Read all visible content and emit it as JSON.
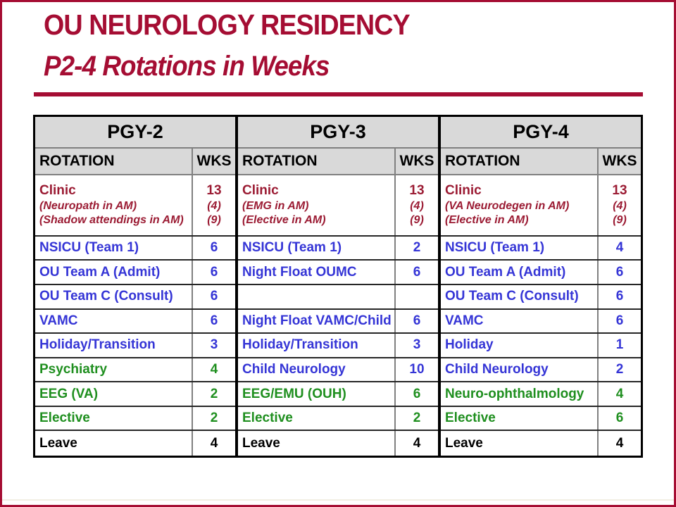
{
  "slide": {
    "title": "OU NEUROLOGY RESIDENCY",
    "subtitle": "P2-4 Rotations in Weeks"
  },
  "colors": {
    "crimson": "#A50D33",
    "table_red": "#9B1B33",
    "blue": "#3535D6",
    "green": "#1F8F1F",
    "black": "#000000",
    "header_bg": "#D9D9D9"
  },
  "table": {
    "column_headers": {
      "rotation": "ROTATION",
      "wks": "WKS"
    },
    "groups": [
      {
        "title": "PGY-2",
        "rows": [
          {
            "rotation": "Clinic",
            "details": [
              "(Neuropath in AM)",
              "(Shadow attendings in AM)"
            ],
            "wks": "13",
            "wks_details": [
              "(4)",
              "(9)"
            ],
            "color": "red"
          },
          {
            "rotation": "NSICU (Team 1)",
            "wks": "6",
            "color": "blue"
          },
          {
            "rotation": "OU Team A (Admit)",
            "wks": "6",
            "color": "blue"
          },
          {
            "rotation": "OU Team C (Consult)",
            "wks": "6",
            "color": "blue"
          },
          {
            "rotation": "VAMC",
            "wks": "6",
            "color": "blue"
          },
          {
            "rotation": "Holiday/Transition",
            "wks": "3",
            "color": "blue"
          },
          {
            "rotation": "Psychiatry",
            "wks": "4",
            "color": "green"
          },
          {
            "rotation": "EEG (VA)",
            "wks": "2",
            "color": "green"
          },
          {
            "rotation": "Elective",
            "wks": "2",
            "color": "green"
          },
          {
            "rotation": "Leave",
            "wks": "4",
            "color": "black"
          }
        ]
      },
      {
        "title": "PGY-3",
        "rows": [
          {
            "rotation": "Clinic",
            "details": [
              "(EMG in AM)",
              "(Elective in AM)"
            ],
            "wks": "13",
            "wks_details": [
              "(4)",
              "(9)"
            ],
            "color": "red"
          },
          {
            "rotation": "NSICU (Team 1)",
            "wks": "2",
            "color": "blue"
          },
          {
            "rotation": "Night Float OUMC",
            "wks": "6",
            "color": "blue"
          },
          {
            "rotation": "",
            "wks": "",
            "color": "blank"
          },
          {
            "rotation": "Night Float VAMC/Child",
            "wks": "6",
            "color": "blue"
          },
          {
            "rotation": "Holiday/Transition",
            "wks": "3",
            "color": "blue"
          },
          {
            "rotation": "Child Neurology",
            "wks": "10",
            "color": "blue"
          },
          {
            "rotation": "EEG/EMU (OUH)",
            "wks": "6",
            "color": "green"
          },
          {
            "rotation": "Elective",
            "wks": "2",
            "color": "green"
          },
          {
            "rotation": "Leave",
            "wks": "4",
            "color": "black"
          }
        ]
      },
      {
        "title": "PGY-4",
        "rows": [
          {
            "rotation": "Clinic",
            "details": [
              "(VA Neurodegen in AM)",
              "(Elective in AM)"
            ],
            "wks": "13",
            "wks_details": [
              "(4)",
              "(9)"
            ],
            "color": "red"
          },
          {
            "rotation": "NSICU (Team 1)",
            "wks": "4",
            "color": "blue"
          },
          {
            "rotation": "OU Team A (Admit)",
            "wks": "6",
            "color": "blue"
          },
          {
            "rotation": "OU Team C (Consult)",
            "wks": "6",
            "color": "blue"
          },
          {
            "rotation": "VAMC",
            "wks": "6",
            "color": "blue"
          },
          {
            "rotation": "Holiday",
            "wks": "1",
            "color": "blue"
          },
          {
            "rotation": "Child Neurology",
            "wks": "2",
            "color": "blue"
          },
          {
            "rotation": "Neuro-ophthalmology",
            "wks": "4",
            "color": "green"
          },
          {
            "rotation": "Elective",
            "wks": "6",
            "color": "green"
          },
          {
            "rotation": "Leave",
            "wks": "4",
            "color": "black"
          }
        ]
      }
    ]
  }
}
